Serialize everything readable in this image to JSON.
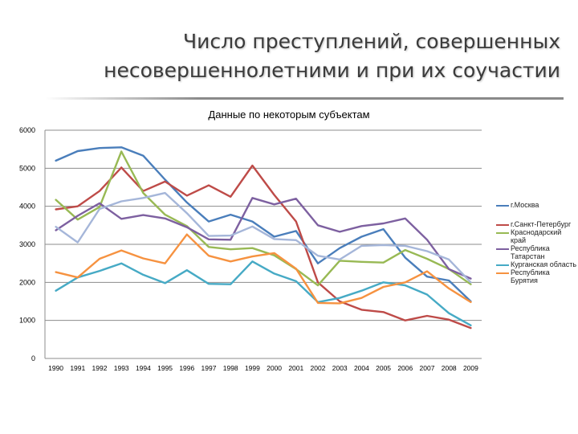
{
  "slide": {
    "title_line1": "Число преступлений, совершенных",
    "title_line2": "несовершеннолетними и при их соучастии"
  },
  "chart_data": {
    "type": "line",
    "title": "Данные по некоторым субъектам",
    "xlabel": "",
    "ylabel": "",
    "ylim": [
      0,
      6000
    ],
    "yticks": [
      0,
      1000,
      2000,
      3000,
      4000,
      5000,
      6000
    ],
    "grid": true,
    "legend_position": "right",
    "categories": [
      "1990",
      "1991",
      "1992",
      "1993",
      "1994",
      "1995",
      "1996",
      "1997",
      "1998",
      "1999",
      "2000",
      "2001",
      "2002",
      "2003",
      "2004",
      "2005",
      "2006",
      "2007",
      "2008",
      "2009"
    ],
    "series": [
      {
        "name": "г.Москва",
        "color": "#4a7ebb",
        "values": [
          5200,
          5450,
          5530,
          5550,
          5330,
          4700,
          4100,
          3600,
          3780,
          3600,
          3200,
          3350,
          2500,
          2900,
          3200,
          3400,
          2650,
          2150,
          2050,
          1500
        ]
      },
      {
        "name": "г.Санкт-Петербург",
        "color": "#be4b48",
        "values": [
          3920,
          4000,
          4400,
          5020,
          4400,
          4650,
          4280,
          4550,
          4250,
          5070,
          4300,
          3600,
          2000,
          1500,
          1280,
          1220,
          1000,
          1120,
          1020,
          800
        ]
      },
      {
        "name": "Краснодарский край",
        "color": "#98b954",
        "values": [
          4170,
          3650,
          3980,
          5440,
          4350,
          3780,
          3480,
          2930,
          2870,
          2900,
          2710,
          2350,
          1920,
          2570,
          2540,
          2520,
          2850,
          2620,
          2350,
          1950
        ]
      },
      {
        "name": "Республика Татарстан",
        "color": "#7d60a0",
        "values": [
          3370,
          3750,
          4080,
          3670,
          3770,
          3680,
          3450,
          3130,
          3120,
          4220,
          4050,
          4200,
          3500,
          3330,
          3480,
          3550,
          3680,
          3120,
          2350,
          2100
        ]
      },
      {
        "name": "Курганская область",
        "color": "#46aac5",
        "values": [
          1780,
          2130,
          2300,
          2500,
          2200,
          1980,
          2320,
          1960,
          1950,
          2550,
          2230,
          2030,
          1480,
          1590,
          1780,
          2000,
          1920,
          1680,
          1190,
          870
        ]
      },
      {
        "name": "Республика Бурятия",
        "color": "#f69240",
        "values": [
          2270,
          2130,
          2620,
          2840,
          2630,
          2500,
          3260,
          2700,
          2550,
          2680,
          2770,
          2360,
          1460,
          1450,
          1590,
          1880,
          2000,
          2290,
          1840,
          1480
        ]
      },
      {
        "name": "",
        "color": "#a5b6d9",
        "values": [
          3460,
          3050,
          3930,
          4130,
          4220,
          4350,
          3820,
          3220,
          3230,
          3470,
          3140,
          3110,
          2700,
          2600,
          2960,
          2980,
          2960,
          2820,
          2600,
          2000
        ]
      }
    ]
  }
}
